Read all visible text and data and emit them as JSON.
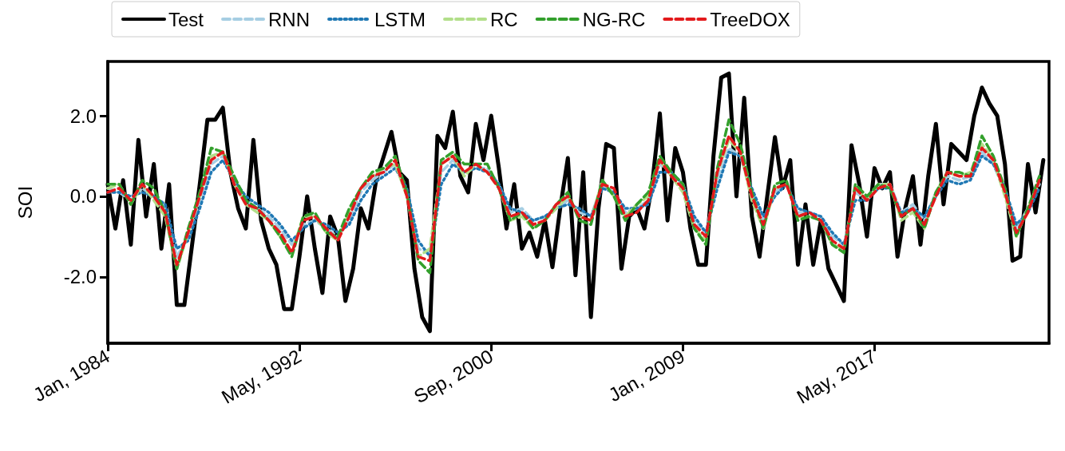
{
  "chart_data": {
    "type": "line",
    "ylabel": "SOI",
    "legend": "top",
    "grid": false,
    "marker": "none",
    "xlim": [
      "1984-01",
      "2024-12"
    ],
    "xticks": [
      {
        "value": "1984-01",
        "label": "Jan, 1984"
      },
      {
        "value": "1992-05",
        "label": "May, 1992"
      },
      {
        "value": "2000-09",
        "label": "Sep, 2000"
      },
      {
        "value": "2009-01",
        "label": "Jan, 2009"
      },
      {
        "value": "2017-05",
        "label": "May, 2017"
      }
    ],
    "ylim": [
      -3.65,
      3.35
    ],
    "yticks": [
      {
        "value": -2,
        "label": "-2.0"
      },
      {
        "value": 0,
        "label": "0.0"
      },
      {
        "value": 2,
        "label": "2.0"
      }
    ],
    "series": [
      {
        "name": "Test",
        "color": "#000000",
        "line_style": "solid",
        "x": [
          "1984-01",
          "1984-05",
          "1984-09",
          "1985-01",
          "1985-05",
          "1985-09",
          "1986-01",
          "1986-05",
          "1986-09",
          "1987-01",
          "1987-05",
          "1987-09",
          "1988-01",
          "1988-05",
          "1988-09",
          "1989-01",
          "1989-05",
          "1989-09",
          "1990-01",
          "1990-05",
          "1990-09",
          "1991-01",
          "1991-05",
          "1991-09",
          "1992-01",
          "1992-05",
          "1992-09",
          "1993-01",
          "1993-05",
          "1993-09",
          "1994-01",
          "1994-05",
          "1994-09",
          "1995-01",
          "1995-05",
          "1995-09",
          "1996-01",
          "1996-05",
          "1996-09",
          "1997-01",
          "1997-05",
          "1997-09",
          "1998-01",
          "1998-05",
          "1998-09",
          "1999-01",
          "1999-05",
          "1999-09",
          "2000-01",
          "2000-05",
          "2000-09",
          "2001-01",
          "2001-05",
          "2001-09",
          "2002-01",
          "2002-05",
          "2002-09",
          "2003-01",
          "2003-05",
          "2003-09",
          "2004-01",
          "2004-05",
          "2004-09",
          "2005-01",
          "2005-05",
          "2005-09",
          "2006-01",
          "2006-05",
          "2006-09",
          "2007-01",
          "2007-05",
          "2007-09",
          "2008-01",
          "2008-05",
          "2008-09",
          "2009-01",
          "2009-05",
          "2009-09",
          "2010-01",
          "2010-05",
          "2010-09",
          "2011-01",
          "2011-05",
          "2011-09",
          "2012-01",
          "2012-05",
          "2012-09",
          "2013-01",
          "2013-05",
          "2013-09",
          "2014-01",
          "2014-05",
          "2014-09",
          "2015-01",
          "2015-05",
          "2015-09",
          "2016-01",
          "2016-05",
          "2016-09",
          "2017-01",
          "2017-05",
          "2017-09",
          "2018-01",
          "2018-05",
          "2018-09",
          "2019-01",
          "2019-05",
          "2019-09",
          "2020-01",
          "2020-05",
          "2020-09",
          "2021-01",
          "2021-05",
          "2021-09",
          "2022-01",
          "2022-05",
          "2022-09",
          "2023-01",
          "2023-05",
          "2023-09",
          "2024-01",
          "2024-05",
          "2024-09"
        ],
        "values": [
          0.3,
          -0.8,
          0.4,
          -1.2,
          1.4,
          -0.5,
          0.8,
          -1.3,
          0.3,
          -2.7,
          -2.7,
          -1.2,
          0.3,
          1.9,
          1.9,
          2.2,
          0.6,
          -0.3,
          -0.8,
          1.4,
          -0.6,
          -1.3,
          -1.7,
          -2.8,
          -2.8,
          -1.5,
          0.0,
          -1.3,
          -2.4,
          -0.5,
          -1.0,
          -2.6,
          -1.8,
          -0.3,
          -0.8,
          0.4,
          1.0,
          1.6,
          0.6,
          0.4,
          -1.8,
          -3.0,
          -3.35,
          1.5,
          1.2,
          2.1,
          0.5,
          0.1,
          1.8,
          0.9,
          2.0,
          0.7,
          -0.8,
          0.3,
          -1.3,
          -0.9,
          -1.5,
          -0.6,
          -1.76,
          -0.3,
          0.95,
          -1.96,
          0.6,
          -3.0,
          -0.3,
          1.3,
          1.2,
          -1.8,
          -0.5,
          -0.3,
          -0.8,
          0.3,
          2.06,
          -0.6,
          1.2,
          0.6,
          -0.8,
          -1.7,
          -1.7,
          1.0,
          2.95,
          3.05,
          0.0,
          2.45,
          -0.5,
          -1.5,
          0.0,
          1.47,
          0.2,
          0.9,
          -1.7,
          -0.2,
          -1.7,
          -0.6,
          -1.8,
          -2.2,
          -2.6,
          1.27,
          0.3,
          -1.0,
          0.7,
          0.2,
          0.6,
          -1.5,
          -0.3,
          0.5,
          -1.2,
          0.5,
          1.8,
          -0.2,
          1.3,
          1.1,
          0.9,
          2.0,
          2.7,
          2.3,
          2.0,
          0.8,
          -1.6,
          -1.5,
          0.8,
          -0.4,
          0.9
        ]
      },
      {
        "name": "RNN",
        "color": "#a6cee3",
        "line_style": "dashed",
        "values": [
          0.2,
          0.1,
          -0.1,
          0.2,
          0.0,
          -0.3,
          -1.5,
          -1.0,
          -0.1,
          0.8,
          1.0,
          0.4,
          -0.1,
          -0.3,
          -0.5,
          -0.8,
          -1.2,
          -0.7,
          -0.6,
          -0.8,
          -1.0,
          -0.6,
          0.1,
          0.4,
          0.6,
          0.8,
          0.1,
          -1.3,
          -1.4,
          0.6,
          0.9,
          0.6,
          0.7,
          0.7,
          0.3,
          -0.4,
          -0.3,
          -0.6,
          -0.5,
          -0.3,
          -0.1,
          -0.4,
          -0.5,
          0.3,
          0.1,
          -0.4,
          -0.3,
          -0.1,
          0.8,
          0.6,
          0.3,
          -0.6,
          -0.9,
          0.4,
          1.2,
          1.0,
          0.1,
          -0.6,
          0.1,
          0.3,
          -0.4,
          -0.4,
          -0.5,
          -1.0,
          -1.2,
          0.1,
          -0.1,
          0.3,
          0.3,
          -0.4,
          -0.2,
          -0.6,
          0.1,
          0.5,
          0.4,
          0.5,
          1.1,
          0.8,
          0.1,
          -0.8,
          -0.3,
          0.3
        ]
      },
      {
        "name": "LSTM",
        "color": "#1f78b4",
        "line_style": "dotted",
        "values": [
          0.1,
          0.1,
          0.0,
          0.1,
          0.0,
          -0.2,
          -1.3,
          -1.1,
          -0.3,
          0.6,
          0.9,
          0.4,
          0.0,
          -0.2,
          -0.4,
          -0.7,
          -1.1,
          -0.8,
          -0.6,
          -0.7,
          -0.9,
          -0.7,
          -0.1,
          0.3,
          0.5,
          0.7,
          0.2,
          -1.1,
          -1.5,
          0.3,
          0.8,
          0.6,
          0.7,
          0.6,
          0.3,
          -0.3,
          -0.4,
          -0.6,
          -0.5,
          -0.3,
          -0.2,
          -0.3,
          -0.5,
          0.2,
          0.1,
          -0.3,
          -0.3,
          -0.2,
          0.6,
          0.6,
          0.3,
          -0.5,
          -0.9,
          0.2,
          1.1,
          1.0,
          0.2,
          -0.5,
          0.0,
          0.3,
          -0.3,
          -0.4,
          -0.5,
          -0.9,
          -1.2,
          -0.1,
          -0.1,
          0.2,
          0.2,
          -0.4,
          -0.3,
          -0.5,
          0.0,
          0.4,
          0.3,
          0.4,
          1.0,
          0.8,
          0.2,
          -0.7,
          -0.4,
          0.2
        ]
      },
      {
        "name": "RC",
        "color": "#b2df8a",
        "line_style": "dashed",
        "values": [
          0.2,
          0.3,
          -0.2,
          0.3,
          -0.1,
          -0.5,
          -1.8,
          -0.9,
          0.0,
          1.0,
          1.1,
          0.3,
          -0.2,
          -0.4,
          -0.6,
          -1.0,
          -1.4,
          -0.5,
          -0.5,
          -0.9,
          -1.1,
          -0.4,
          0.2,
          0.5,
          0.7,
          0.8,
          0.0,
          -1.5,
          -1.3,
          0.8,
          1.0,
          0.5,
          0.8,
          0.6,
          0.2,
          -0.6,
          -0.5,
          -0.8,
          -0.6,
          -0.3,
          0.0,
          -0.5,
          -0.6,
          0.4,
          0.0,
          -0.5,
          -0.2,
          0.0,
          0.9,
          0.5,
          0.1,
          -0.8,
          -1.1,
          0.6,
          1.4,
          1.1,
          -0.1,
          -0.8,
          0.2,
          0.3,
          -0.5,
          -0.5,
          -0.6,
          -1.2,
          -1.3,
          0.2,
          -0.1,
          0.3,
          0.3,
          -0.6,
          -0.4,
          -0.8,
          0.1,
          0.6,
          0.5,
          0.6,
          1.3,
          0.9,
          0.0,
          -1.0,
          -0.3,
          0.4
        ]
      },
      {
        "name": "NG-RC",
        "color": "#33a02c",
        "line_style": "dashed",
        "values": [
          0.3,
          0.3,
          -0.2,
          0.4,
          0.2,
          -0.4,
          -1.8,
          -0.8,
          0.1,
          1.2,
          1.1,
          0.5,
          -0.1,
          -0.3,
          -0.6,
          -1.0,
          -1.5,
          -0.5,
          -0.4,
          -0.9,
          -1.0,
          -0.3,
          0.2,
          0.6,
          0.7,
          1.0,
          0.1,
          -1.6,
          -1.9,
          0.9,
          1.1,
          0.8,
          0.8,
          0.8,
          0.2,
          -0.6,
          -0.4,
          -0.8,
          -0.6,
          -0.2,
          0.1,
          -0.6,
          -0.7,
          0.4,
          0.0,
          -0.6,
          -0.2,
          0.1,
          1.0,
          0.6,
          0.3,
          -0.8,
          -1.2,
          0.7,
          1.9,
          1.3,
          0.1,
          -0.8,
          0.3,
          0.4,
          -0.6,
          -0.5,
          -0.6,
          -1.2,
          -1.4,
          0.3,
          0.0,
          0.3,
          0.2,
          -0.5,
          -0.3,
          -0.8,
          0.1,
          0.6,
          0.6,
          0.5,
          1.5,
          1.0,
          0.2,
          -1.0,
          -0.3,
          0.5
        ]
      },
      {
        "name": "TreeDOX",
        "color": "#e31a1c",
        "line_style": "dashed",
        "values": [
          0.1,
          0.2,
          -0.1,
          0.3,
          0.0,
          -0.4,
          -1.7,
          -0.9,
          0.0,
          0.9,
          1.1,
          0.3,
          -0.2,
          -0.3,
          -0.6,
          -0.9,
          -1.4,
          -0.6,
          -0.5,
          -0.8,
          -1.1,
          -0.5,
          0.2,
          0.5,
          0.6,
          0.9,
          0.0,
          -1.5,
          -1.6,
          0.8,
          1.0,
          0.6,
          0.8,
          0.6,
          0.2,
          -0.5,
          -0.4,
          -0.7,
          -0.6,
          -0.2,
          0.0,
          -0.5,
          -0.6,
          0.3,
          0.2,
          -0.5,
          -0.4,
          -0.1,
          0.9,
          0.5,
          0.2,
          -0.7,
          -1.0,
          0.6,
          1.5,
          1.1,
          0.0,
          -0.7,
          0.2,
          0.3,
          -0.5,
          -0.4,
          -0.6,
          -1.1,
          -1.3,
          0.2,
          -0.1,
          0.2,
          0.3,
          -0.5,
          -0.3,
          -0.7,
          0.0,
          0.6,
          0.5,
          0.5,
          1.2,
          0.9,
          0.1,
          -0.9,
          -0.4,
          0.4
        ]
      }
    ],
    "x": [
      "1984-01",
      "1984-07",
      "1985-01",
      "1985-07",
      "1986-01",
      "1986-07",
      "1987-01",
      "1987-07",
      "1988-01",
      "1988-07",
      "1989-01",
      "1989-07",
      "1990-01",
      "1990-07",
      "1991-01",
      "1991-07",
      "1992-01",
      "1992-07",
      "1993-01",
      "1993-07",
      "1994-01",
      "1994-07",
      "1995-01",
      "1995-07",
      "1996-01",
      "1996-07",
      "1997-01",
      "1997-07",
      "1998-01",
      "1998-07",
      "1999-01",
      "1999-07",
      "2000-01",
      "2000-07",
      "2001-01",
      "2001-07",
      "2002-01",
      "2002-07",
      "2003-01",
      "2003-07",
      "2004-01",
      "2004-07",
      "2005-01",
      "2005-07",
      "2006-01",
      "2006-07",
      "2007-01",
      "2007-07",
      "2008-01",
      "2008-07",
      "2009-01",
      "2009-07",
      "2010-01",
      "2010-07",
      "2011-01",
      "2011-07",
      "2012-01",
      "2012-07",
      "2013-01",
      "2013-07",
      "2014-01",
      "2014-07",
      "2015-01",
      "2015-07",
      "2016-01",
      "2016-07",
      "2017-01",
      "2017-07",
      "2018-01",
      "2018-07",
      "2019-01",
      "2019-07",
      "2020-01",
      "2020-07",
      "2021-01",
      "2021-07",
      "2022-01",
      "2022-07",
      "2023-01",
      "2023-07",
      "2024-01",
      "2024-07"
    ]
  }
}
